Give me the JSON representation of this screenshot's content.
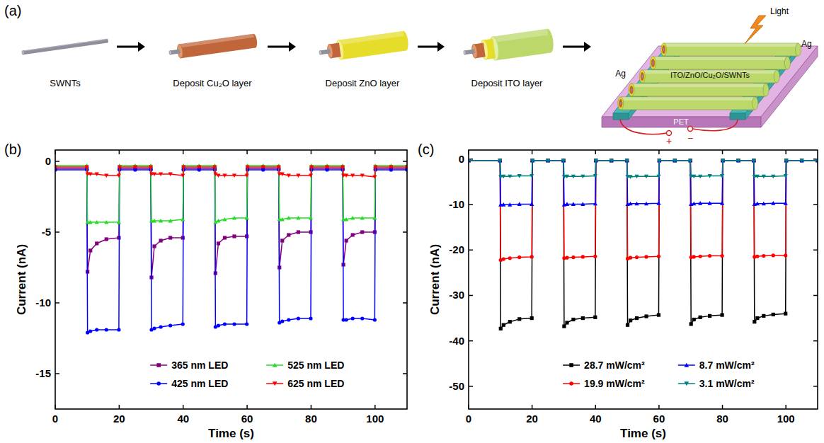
{
  "diagram": {
    "panel": "(a)",
    "steps": [
      "SWNTs",
      "Deposit Cu₂O layer",
      "Deposit ZnO layer",
      "Deposit ITO layer"
    ],
    "device": {
      "light": "Light",
      "electrodes": [
        "Ag",
        "Ag"
      ],
      "wire": "ITO/ZnO/Cu₂O/SWNTs",
      "substrate": "PET",
      "terminals": [
        "+",
        "−"
      ]
    }
  },
  "chart_data": [
    {
      "type": "line",
      "panel": "(b)",
      "x_label": "Time (s)",
      "y_label": "Current (nA)",
      "x": [
        0,
        9.9,
        10.1,
        11,
        13,
        16,
        19.9,
        20.1,
        25,
        29.9,
        30.1,
        31,
        33,
        36,
        39.9,
        40.1,
        45,
        49.9,
        50.1,
        51,
        53,
        56,
        59.9,
        60.1,
        65,
        69.9,
        70.1,
        71,
        73,
        76,
        79.9,
        80.1,
        85,
        89.9,
        90.1,
        91,
        93,
        96,
        99.9,
        100.1,
        105,
        110
      ],
      "xlim": [
        0,
        110
      ],
      "xticks": [
        0,
        20,
        40,
        60,
        80,
        100
      ],
      "ylim": [
        -17.5,
        0.8
      ],
      "yticks": [
        -15,
        -10,
        -5,
        0
      ],
      "grid": false,
      "legend": "lower right",
      "series": [
        {
          "name": "365 nm LED",
          "color": "#800080",
          "marker": "square",
          "values": [
            -0.5,
            -0.5,
            -7.8,
            -6.3,
            -5.8,
            -5.5,
            -5.4,
            -0.5,
            -0.5,
            -0.5,
            -8.2,
            -6.0,
            -5.6,
            -5.4,
            -5.4,
            -0.5,
            -0.5,
            -0.5,
            -7.9,
            -5.8,
            -5.4,
            -5.3,
            -5.3,
            -0.5,
            -0.5,
            -0.5,
            -7.5,
            -5.6,
            -5.2,
            -5.0,
            -5.0,
            -0.5,
            -0.5,
            -0.5,
            -7.3,
            -5.6,
            -5.2,
            -5.0,
            -5.0,
            -0.5,
            -0.5,
            -0.5
          ]
        },
        {
          "name": "425 nm LED",
          "color": "#0000ff",
          "marker": "circle",
          "values": [
            -0.6,
            -0.6,
            -12.1,
            -12.0,
            -11.9,
            -11.9,
            -11.9,
            -0.6,
            -0.6,
            -0.6,
            -11.9,
            -11.8,
            -11.7,
            -11.6,
            -11.5,
            -0.6,
            -0.6,
            -0.6,
            -11.7,
            -11.6,
            -11.5,
            -11.5,
            -11.5,
            -0.6,
            -0.6,
            -0.6,
            -11.4,
            -11.3,
            -11.2,
            -11.1,
            -11.1,
            -0.6,
            -0.6,
            -0.6,
            -11.2,
            -11.2,
            -11.1,
            -11.1,
            -11.2,
            -0.6,
            -0.6,
            -0.6
          ]
        },
        {
          "name": "525 nm LED",
          "color": "#22dd22",
          "marker": "triangle",
          "values": [
            -0.3,
            -0.3,
            -4.3,
            -4.3,
            -4.3,
            -4.3,
            -4.3,
            -0.3,
            -0.3,
            -0.3,
            -4.2,
            -4.2,
            -4.2,
            -4.2,
            -4.1,
            -0.3,
            -0.3,
            -0.3,
            -4.3,
            -4.2,
            -4.1,
            -4.0,
            -4.0,
            -0.3,
            -0.3,
            -0.3,
            -4.1,
            -4.1,
            -4.0,
            -4.0,
            -4.0,
            -0.3,
            -0.3,
            -0.3,
            -4.1,
            -4.1,
            -4.0,
            -4.0,
            -4.0,
            -0.3,
            -0.3,
            -0.3
          ]
        },
        {
          "name": "625 nm LED",
          "color": "#ff0000",
          "marker": "triangle-down",
          "values": [
            -0.4,
            -0.4,
            -0.9,
            -0.9,
            -0.9,
            -1.0,
            -1.0,
            -0.4,
            -0.4,
            -0.4,
            -0.9,
            -0.9,
            -0.9,
            -0.9,
            -1.0,
            -0.4,
            -0.4,
            -0.4,
            -0.9,
            -1.0,
            -1.0,
            -1.0,
            -1.0,
            -0.4,
            -0.4,
            -0.4,
            -0.9,
            -0.9,
            -1.0,
            -1.0,
            -1.0,
            -0.4,
            -0.4,
            -0.4,
            -1.0,
            -1.0,
            -1.0,
            -1.0,
            -1.1,
            -0.4,
            -0.4,
            -0.4
          ]
        }
      ]
    },
    {
      "type": "line",
      "panel": "(c)",
      "x_label": "Time (s)",
      "y_label": "Current (nA)",
      "x": [
        0,
        9.9,
        10.1,
        11,
        13,
        16,
        19.9,
        20.1,
        25,
        29.9,
        30.1,
        31,
        33,
        36,
        39.9,
        40.1,
        45,
        49.9,
        50.1,
        51,
        53,
        56,
        59.9,
        60.1,
        65,
        69.9,
        70.1,
        71,
        73,
        76,
        79.9,
        80.1,
        85,
        89.9,
        90.1,
        91,
        93,
        96,
        99.9,
        100.1,
        105,
        110
      ],
      "xlim": [
        0,
        110
      ],
      "xticks": [
        0,
        20,
        40,
        60,
        80,
        100
      ],
      "ylim": [
        -55,
        2
      ],
      "yticks": [
        -50,
        -40,
        -30,
        -20,
        -10,
        0
      ],
      "grid": false,
      "legend": "lower right",
      "series": [
        {
          "name": "28.7 mW/cm²",
          "color": "#000000",
          "marker": "square",
          "values": [
            -0.3,
            -0.3,
            -37.3,
            -36.5,
            -35.8,
            -35.2,
            -35.0,
            -0.3,
            -0.3,
            -0.3,
            -36.8,
            -36.0,
            -35.3,
            -35.0,
            -34.8,
            -0.3,
            -0.3,
            -0.3,
            -36.5,
            -35.5,
            -35.0,
            -34.6,
            -34.3,
            -0.3,
            -0.3,
            -0.3,
            -36.3,
            -35.3,
            -34.8,
            -34.5,
            -34.3,
            -0.3,
            -0.3,
            -0.3,
            -35.8,
            -35.0,
            -34.5,
            -34.2,
            -34.0,
            -0.3,
            -0.3,
            -0.3
          ]
        },
        {
          "name": "19.9 mW/cm²",
          "color": "#ff0000",
          "marker": "circle",
          "values": [
            -0.3,
            -0.3,
            -22.2,
            -22.0,
            -21.8,
            -21.6,
            -21.5,
            -0.3,
            -0.3,
            -0.3,
            -21.8,
            -21.7,
            -21.6,
            -21.5,
            -21.4,
            -0.3,
            -0.3,
            -0.3,
            -21.9,
            -21.7,
            -21.6,
            -21.5,
            -21.4,
            -0.3,
            -0.3,
            -0.3,
            -21.6,
            -21.5,
            -21.4,
            -21.3,
            -21.3,
            -0.3,
            -0.3,
            -0.3,
            -21.5,
            -21.4,
            -21.3,
            -21.2,
            -21.2,
            -0.3,
            -0.3,
            -0.3
          ]
        },
        {
          "name": "8.7 mW/cm²",
          "color": "#0000ff",
          "marker": "triangle",
          "values": [
            -0.3,
            -0.3,
            -10.0,
            -10.0,
            -10.0,
            -9.9,
            -9.9,
            -0.3,
            -0.3,
            -0.3,
            -10.0,
            -9.9,
            -9.9,
            -9.9,
            -9.8,
            -0.3,
            -0.3,
            -0.3,
            -9.9,
            -9.8,
            -9.8,
            -9.8,
            -9.7,
            -0.3,
            -0.3,
            -0.3,
            -9.9,
            -9.8,
            -9.7,
            -9.7,
            -9.7,
            -0.3,
            -0.3,
            -0.3,
            -9.9,
            -9.8,
            -9.8,
            -9.7,
            -9.7,
            -0.3,
            -0.3,
            -0.3
          ]
        },
        {
          "name": "3.1 mW/cm²",
          "color": "#008080",
          "marker": "triangle-down",
          "values": [
            -0.3,
            -0.3,
            -3.9,
            -3.8,
            -3.8,
            -3.7,
            -3.7,
            -0.3,
            -0.3,
            -0.3,
            -3.9,
            -3.8,
            -3.8,
            -3.8,
            -3.7,
            -0.3,
            -0.3,
            -0.3,
            -3.9,
            -3.9,
            -3.8,
            -3.8,
            -3.8,
            -0.3,
            -0.3,
            -0.3,
            -3.8,
            -3.8,
            -3.8,
            -3.7,
            -3.7,
            -0.3,
            -0.3,
            -0.3,
            -3.9,
            -3.8,
            -3.8,
            -3.8,
            -3.7,
            -0.3,
            -0.3,
            -0.3
          ]
        }
      ]
    }
  ]
}
